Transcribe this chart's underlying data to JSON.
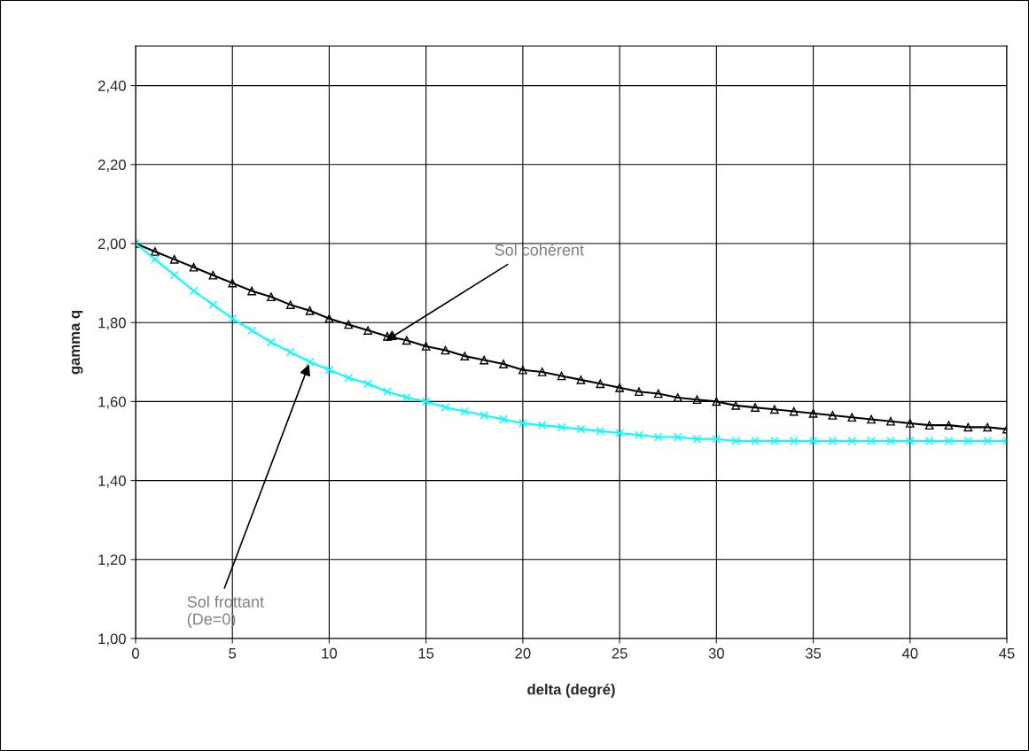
{
  "chart_data": {
    "type": "line",
    "xlabel": "delta (degré)",
    "ylabel": "gamma q",
    "x": [
      0,
      1,
      2,
      3,
      4,
      5,
      6,
      7,
      8,
      9,
      10,
      11,
      12,
      13,
      14,
      15,
      16,
      17,
      18,
      19,
      20,
      21,
      22,
      23,
      24,
      25,
      26,
      27,
      28,
      29,
      30,
      31,
      32,
      33,
      34,
      35,
      36,
      37,
      38,
      39,
      40,
      41,
      42,
      43,
      44,
      45
    ],
    "series": [
      {
        "color": "#000000",
        "marker": "triangle",
        "values": [
          2.0,
          1.98,
          1.96,
          1.94,
          1.92,
          1.9,
          1.88,
          1.865,
          1.845,
          1.83,
          1.81,
          1.795,
          1.78,
          1.765,
          1.755,
          1.74,
          1.73,
          1.715,
          1.705,
          1.695,
          1.68,
          1.675,
          1.665,
          1.655,
          1.645,
          1.635,
          1.625,
          1.62,
          1.61,
          1.605,
          1.6,
          1.59,
          1.585,
          1.58,
          1.575,
          1.57,
          1.565,
          1.56,
          1.555,
          1.55,
          1.545,
          1.54,
          1.54,
          1.535,
          1.535,
          1.53
        ]
      },
      {
        "color": "#00ffff",
        "marker": "cross",
        "values": [
          2.0,
          1.96,
          1.92,
          1.88,
          1.845,
          1.81,
          1.78,
          1.75,
          1.725,
          1.7,
          1.68,
          1.66,
          1.645,
          1.625,
          1.61,
          1.6,
          1.585,
          1.575,
          1.565,
          1.555,
          1.545,
          1.54,
          1.535,
          1.53,
          1.525,
          1.52,
          1.515,
          1.51,
          1.51,
          1.505,
          1.505,
          1.5,
          1.5,
          1.5,
          1.5,
          1.5,
          1.5,
          1.5,
          1.5,
          1.5,
          1.5,
          1.5,
          1.5,
          1.5,
          1.5,
          1.5
        ]
      }
    ],
    "xlim": [
      0,
      45
    ],
    "xticks": [
      0,
      5,
      10,
      15,
      20,
      25,
      30,
      35,
      40,
      45
    ],
    "ylim": [
      1,
      2.5
    ],
    "yticks": [
      {
        "value": 1.0,
        "label": "1,00"
      },
      {
        "value": 1.2,
        "label": "1,20"
      },
      {
        "value": 1.4,
        "label": "1,40"
      },
      {
        "value": 1.6,
        "label": "1,60"
      },
      {
        "value": 1.8,
        "label": "1,80"
      },
      {
        "value": 2.0,
        "label": "2,00"
      },
      {
        "value": 2.2,
        "label": "2,20"
      },
      {
        "value": 2.4,
        "label": "2,40"
      }
    ],
    "grid": true,
    "legend": false,
    "annotations": [
      {
        "text": "Sol cohérent",
        "x": 12.8,
        "y": 1.75
      },
      {
        "text": "Sol frottant\n(De=0)",
        "x": 9,
        "y": 1.7
      }
    ]
  }
}
